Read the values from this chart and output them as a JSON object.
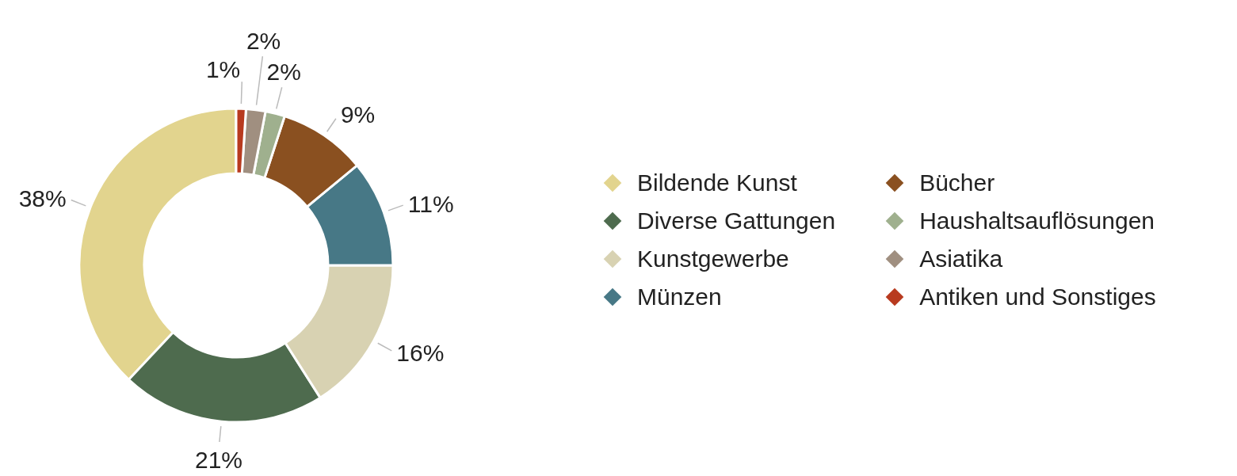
{
  "chart_data": {
    "type": "donut",
    "categories": [
      "Bildende Kunst",
      "Diverse Gattungen",
      "Kunstgewerbe",
      "Münzen",
      "Bücher",
      "Haushaltsauflösungen",
      "Asiatika",
      "Antiken und Sonstiges"
    ],
    "values": [
      38,
      21,
      16,
      11,
      9,
      2,
      2,
      1
    ],
    "colors": [
      "#e2d48e",
      "#4e6b4e",
      "#d8d2b2",
      "#477886",
      "#8a5020",
      "#9fb08e",
      "#a08f80",
      "#b83a1f"
    ],
    "value_labels": [
      "38%",
      "21%",
      "16%",
      "11%",
      "9%",
      "2%",
      "2%",
      "1%"
    ],
    "legend": "right"
  }
}
